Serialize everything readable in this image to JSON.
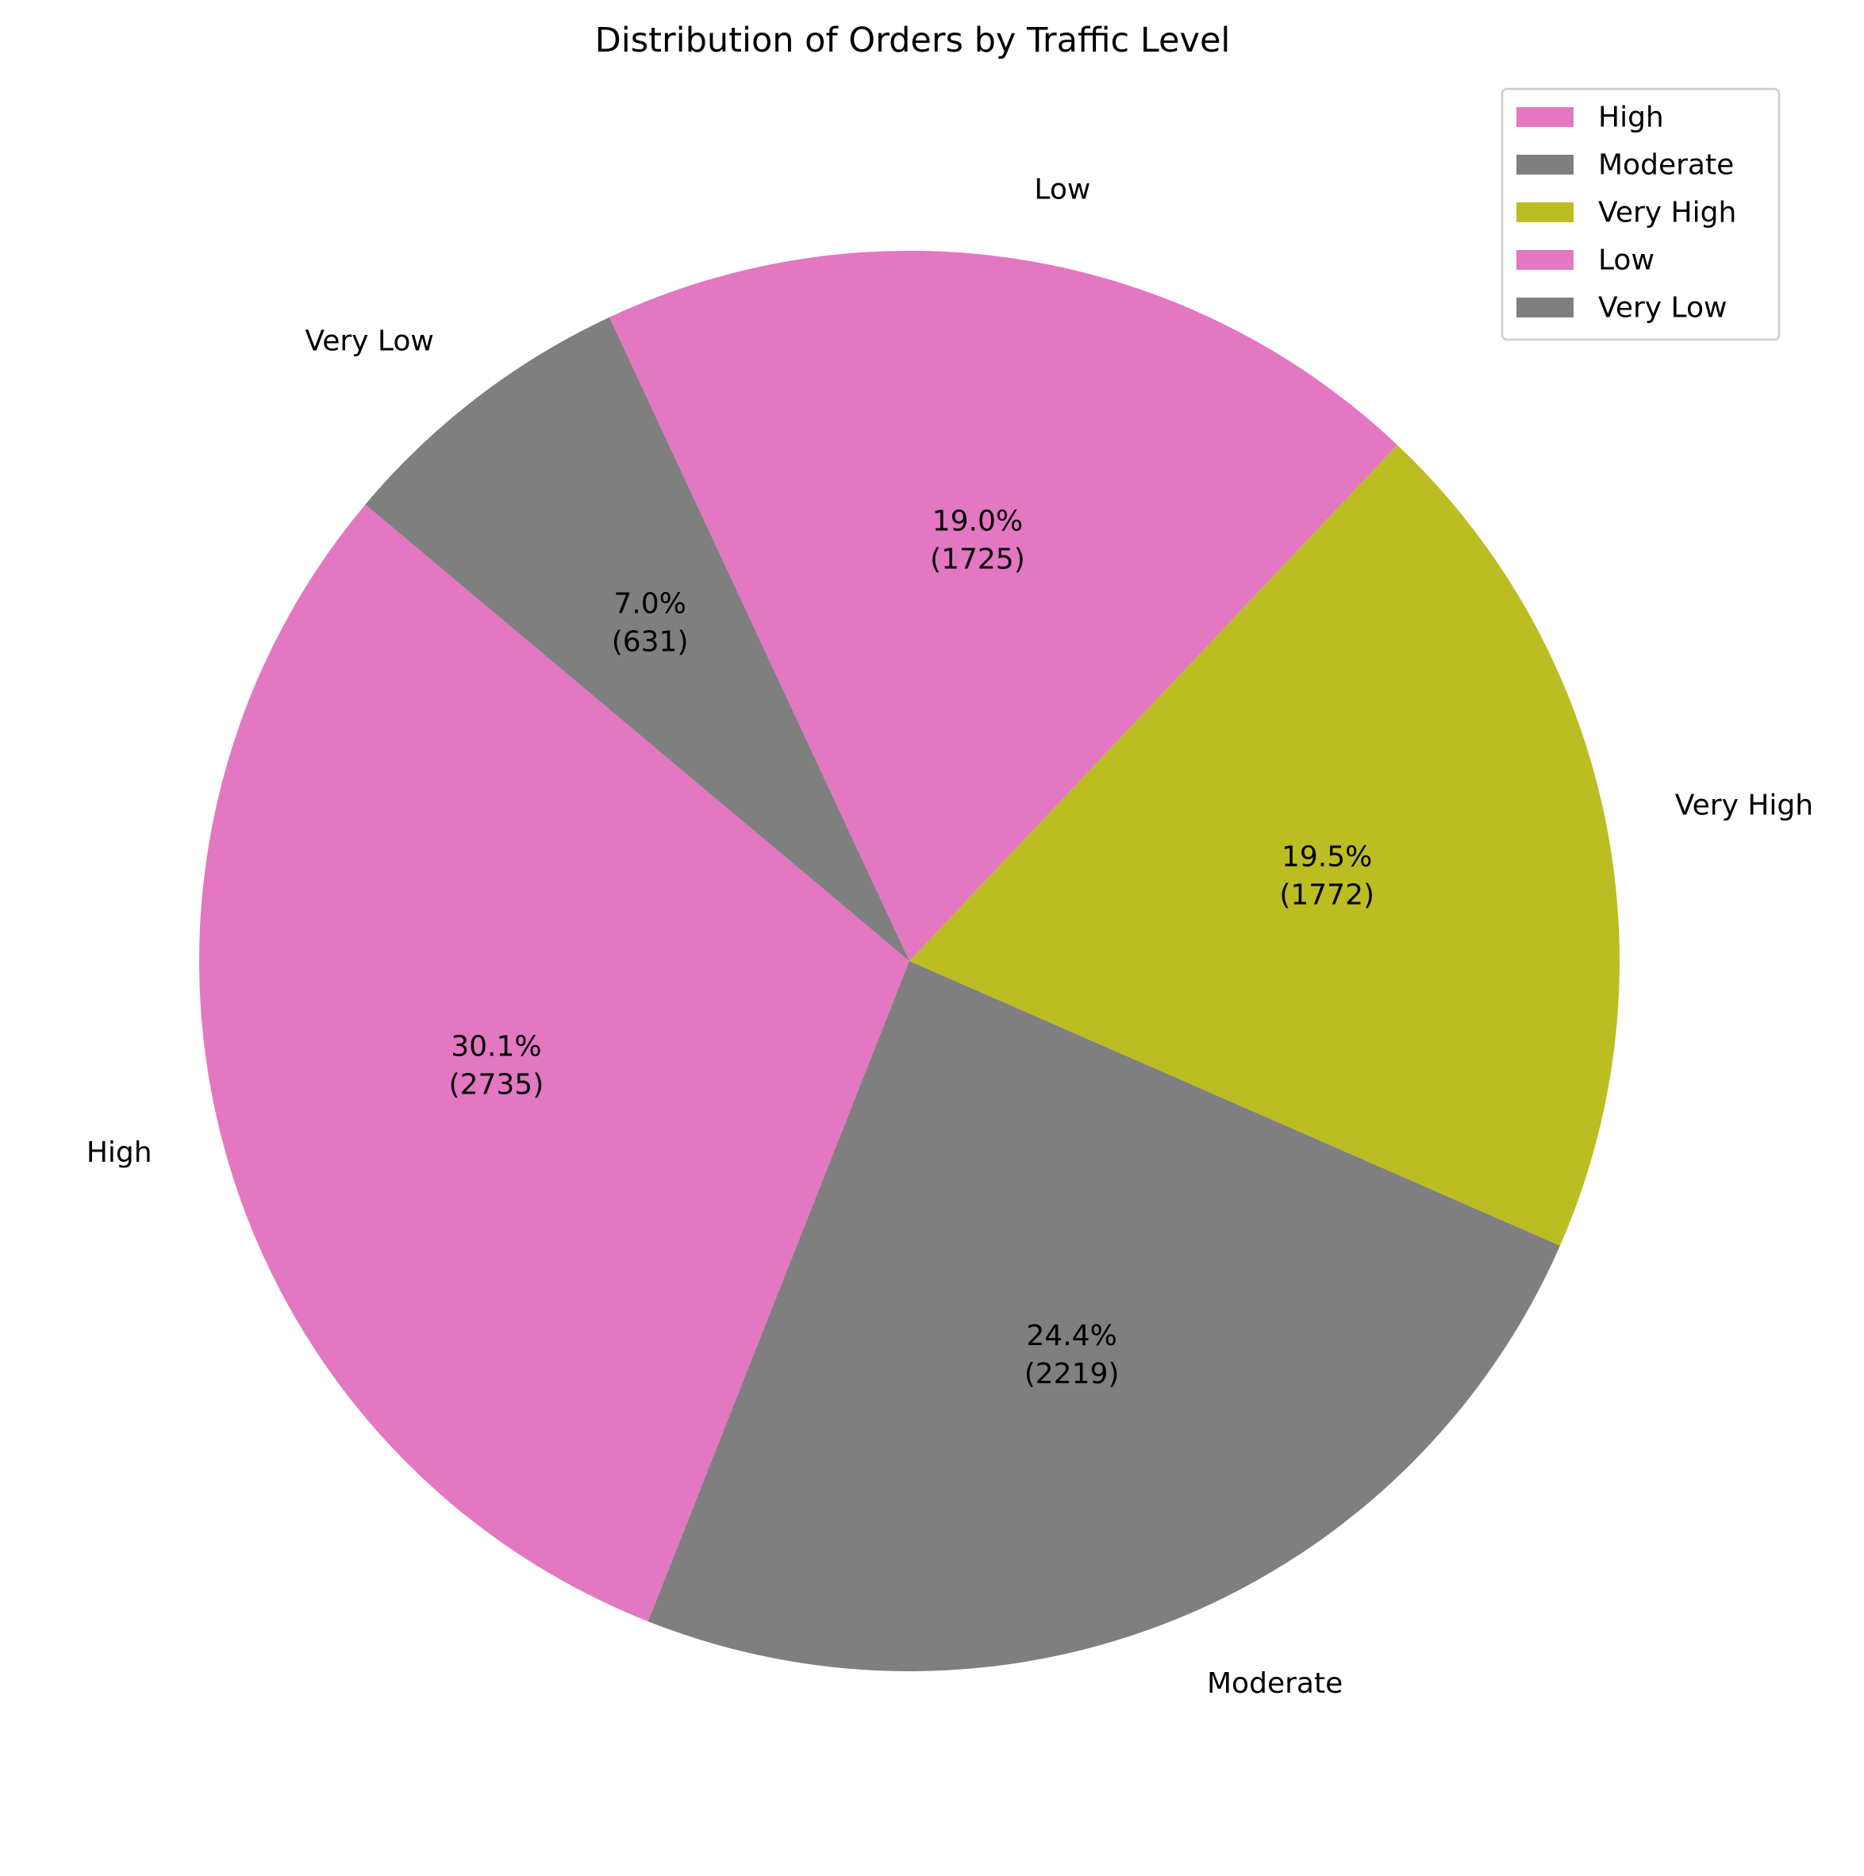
{
  "chart_data": {
    "type": "pie",
    "title": "Distribution of Orders by Traffic Level",
    "start_angle_deg": 140,
    "direction": "counterclockwise",
    "legend_position": "top-right",
    "slices": [
      {
        "label": "High",
        "value": 2735,
        "percent_label": "30.1%",
        "count_label": "(2735)",
        "color": "#e377c2"
      },
      {
        "label": "Moderate",
        "value": 2219,
        "percent_label": "24.4%",
        "count_label": "(2219)",
        "color": "#7f7f7f"
      },
      {
        "label": "Very High",
        "value": 1772,
        "percent_label": "19.5%",
        "count_label": "(1772)",
        "color": "#bcbd22"
      },
      {
        "label": "Low",
        "value": 1725,
        "percent_label": "19.0%",
        "count_label": "(1725)",
        "color": "#e377c2"
      },
      {
        "label": "Very Low",
        "value": 631,
        "percent_label": "7.0%",
        "count_label": "(631)",
        "color": "#7f7f7f"
      }
    ],
    "legend": [
      "High",
      "Moderate",
      "Very High",
      "Low",
      "Very Low"
    ]
  }
}
